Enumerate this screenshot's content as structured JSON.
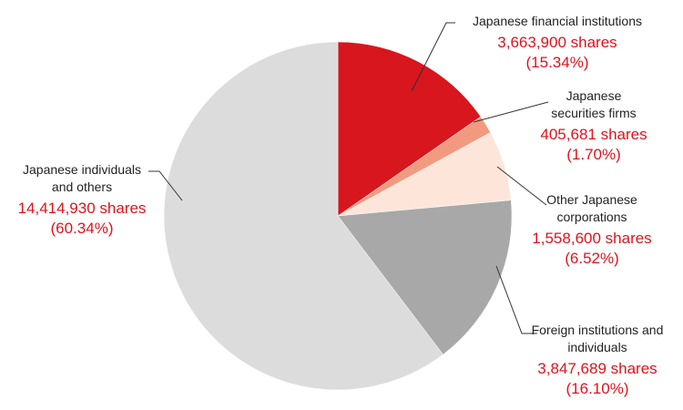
{
  "chart_data": {
    "type": "pie",
    "categories": [
      "Japanese financial institutions",
      "Japanese securities firms",
      "Other Japanese corporations",
      "Foreign institutions and individuals",
      "Japanese individuals and others"
    ],
    "values": [
      15.34,
      1.7,
      6.52,
      16.1,
      60.34
    ],
    "value_labels": [
      "(15.34%)",
      "(1.70%)",
      "(6.52%)",
      "(16.10%)",
      "(60.34%)"
    ],
    "shares": [
      3663900,
      405681,
      1558600,
      3847689,
      14414930
    ],
    "share_labels": [
      "3,663,900 shares",
      "405,681 shares",
      "1,558,600 shares",
      "3,847,689 shares",
      "14,414,930 shares"
    ],
    "colors": [
      "#d7161e",
      "#f29a7f",
      "#fde6d9",
      "#a8a8a8",
      "#dcdcdc"
    ]
  }
}
